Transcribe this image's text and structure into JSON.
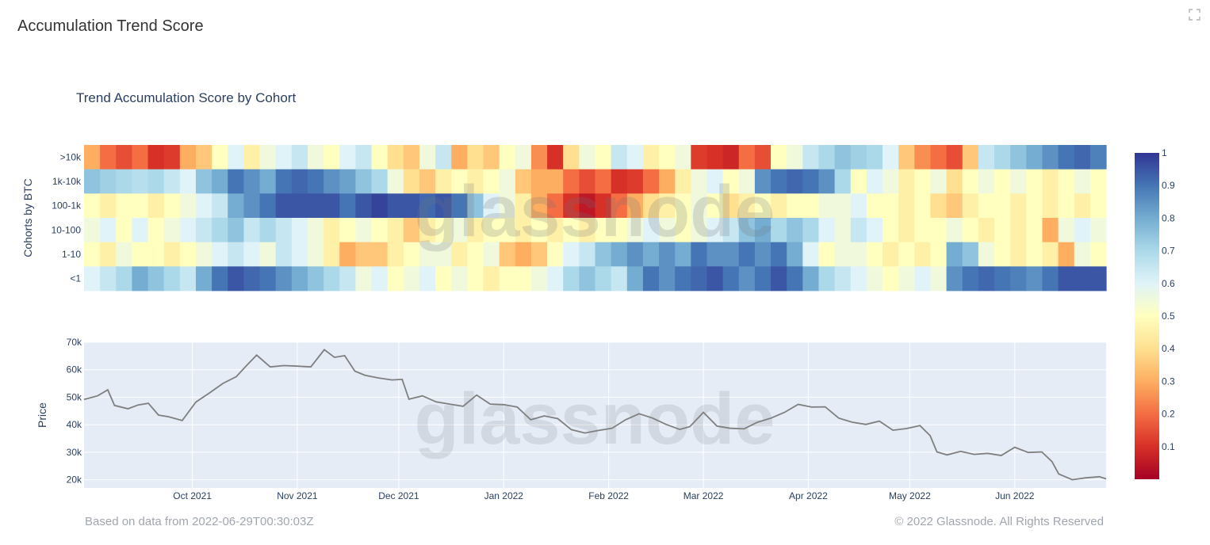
{
  "page": {
    "title": "Accumulation Trend Score"
  },
  "icons": {
    "expand": "expand-icon"
  },
  "footer": {
    "source_note": "Based on data from 2022-06-29T00:30:03Z",
    "copyright": "© 2022 Glassnode. All Rights Reserved"
  },
  "watermark": "glassnode",
  "colors": {
    "colorscale": [
      "#a50026",
      "#d73027",
      "#f46d43",
      "#fdae61",
      "#fee090",
      "#ffffbf",
      "#e0f3f8",
      "#abd9e9",
      "#74add1",
      "#4575b4",
      "#313695"
    ],
    "price_line": "#7f7f7f",
    "price_plot_bg": "#e5ecf6"
  },
  "chart_data": [
    {
      "type": "heatmap",
      "title": "Trend Accumulation Score by Cohort",
      "ylabel": "Cohorts by BTC",
      "rows": [
        ">10k",
        "1k-10k",
        "100-1k",
        "10-100",
        "1-10",
        "<1"
      ],
      "x_start": "2021-08-30",
      "x_end": "2022-06-28",
      "colorbar": {
        "range": [
          0,
          1
        ],
        "ticks": [
          0.1,
          0.2,
          0.3,
          0.4,
          0.5,
          0.6,
          0.7,
          0.8,
          0.9,
          1
        ]
      },
      "series": [
        {
          "name": ">10k",
          "values": [
            0.3,
            0.2,
            0.15,
            0.2,
            0.1,
            0.12,
            0.3,
            0.35,
            0.5,
            0.6,
            0.45,
            0.55,
            0.6,
            0.65,
            0.55,
            0.5,
            0.6,
            0.65,
            0.5,
            0.4,
            0.35,
            0.55,
            0.65,
            0.3,
            0.4,
            0.35,
            0.5,
            0.55,
            0.25,
            0.1,
            0.4,
            0.55,
            0.5,
            0.65,
            0.6,
            0.45,
            0.5,
            0.55,
            0.12,
            0.1,
            0.08,
            0.2,
            0.15,
            0.5,
            0.55,
            0.65,
            0.7,
            0.75,
            0.72,
            0.7,
            0.6,
            0.35,
            0.25,
            0.2,
            0.15,
            0.35,
            0.65,
            0.7,
            0.75,
            0.8,
            0.85,
            0.9,
            0.92,
            0.88
          ]
        },
        {
          "name": "1k-10k",
          "values": [
            0.75,
            0.72,
            0.7,
            0.68,
            0.7,
            0.65,
            0.6,
            0.75,
            0.8,
            0.9,
            0.85,
            0.8,
            0.9,
            0.92,
            0.9,
            0.85,
            0.82,
            0.75,
            0.7,
            0.55,
            0.4,
            0.35,
            0.45,
            0.5,
            0.45,
            0.5,
            0.55,
            0.35,
            0.3,
            0.3,
            0.2,
            0.15,
            0.2,
            0.1,
            0.12,
            0.2,
            0.3,
            0.45,
            0.55,
            0.6,
            0.5,
            0.55,
            0.85,
            0.9,
            0.92,
            0.9,
            0.85,
            0.7,
            0.5,
            0.6,
            0.55,
            0.45,
            0.5,
            0.55,
            0.4,
            0.5,
            0.55,
            0.5,
            0.55,
            0.5,
            0.45,
            0.5,
            0.55,
            0.5
          ]
        },
        {
          "name": "100-1k",
          "values": [
            0.5,
            0.45,
            0.5,
            0.5,
            0.45,
            0.5,
            0.55,
            0.6,
            0.65,
            0.8,
            0.85,
            0.9,
            0.95,
            0.95,
            0.95,
            0.95,
            0.9,
            0.95,
            0.98,
            0.95,
            0.95,
            0.92,
            0.95,
            0.9,
            0.75,
            0.6,
            0.55,
            0.45,
            0.3,
            0.2,
            0.1,
            0.05,
            0.1,
            0.2,
            0.3,
            0.4,
            0.45,
            0.5,
            0.55,
            0.5,
            0.4,
            0.45,
            0.5,
            0.45,
            0.5,
            0.5,
            0.55,
            0.55,
            0.6,
            0.5,
            0.5,
            0.45,
            0.5,
            0.4,
            0.35,
            0.45,
            0.5,
            0.5,
            0.45,
            0.5,
            0.45,
            0.5,
            0.45,
            0.5
          ]
        },
        {
          "name": "10-100",
          "values": [
            0.55,
            0.6,
            0.5,
            0.6,
            0.5,
            0.55,
            0.6,
            0.65,
            0.7,
            0.75,
            0.65,
            0.7,
            0.65,
            0.6,
            0.55,
            0.45,
            0.5,
            0.55,
            0.5,
            0.45,
            0.35,
            0.45,
            0.5,
            0.55,
            0.45,
            0.5,
            0.5,
            0.45,
            0.5,
            0.45,
            0.5,
            0.45,
            0.5,
            0.5,
            0.55,
            0.6,
            0.55,
            0.5,
            0.55,
            0.6,
            0.65,
            0.75,
            0.8,
            0.7,
            0.75,
            0.7,
            0.6,
            0.55,
            0.65,
            0.6,
            0.5,
            0.45,
            0.5,
            0.5,
            0.55,
            0.5,
            0.45,
            0.5,
            0.45,
            0.5,
            0.3,
            0.55,
            0.6,
            0.55
          ]
        },
        {
          "name": "1-10",
          "values": [
            0.5,
            0.45,
            0.55,
            0.5,
            0.5,
            0.45,
            0.5,
            0.55,
            0.6,
            0.65,
            0.6,
            0.55,
            0.65,
            0.6,
            0.55,
            0.45,
            0.3,
            0.35,
            0.35,
            0.45,
            0.5,
            0.55,
            0.55,
            0.45,
            0.5,
            0.55,
            0.35,
            0.3,
            0.35,
            0.5,
            0.6,
            0.65,
            0.75,
            0.8,
            0.85,
            0.8,
            0.85,
            0.8,
            0.9,
            0.85,
            0.85,
            0.9,
            0.85,
            0.9,
            0.8,
            0.6,
            0.5,
            0.55,
            0.55,
            0.5,
            0.45,
            0.5,
            0.45,
            0.5,
            0.8,
            0.75,
            0.55,
            0.5,
            0.45,
            0.5,
            0.45,
            0.3,
            0.55,
            0.5
          ]
        },
        {
          "name": "<1",
          "values": [
            0.6,
            0.65,
            0.7,
            0.8,
            0.75,
            0.7,
            0.65,
            0.8,
            0.9,
            0.95,
            0.92,
            0.9,
            0.85,
            0.8,
            0.75,
            0.7,
            0.65,
            0.55,
            0.6,
            0.5,
            0.55,
            0.6,
            0.5,
            0.55,
            0.5,
            0.45,
            0.5,
            0.5,
            0.55,
            0.6,
            0.7,
            0.75,
            0.7,
            0.65,
            0.8,
            0.9,
            0.85,
            0.9,
            0.92,
            0.95,
            0.9,
            0.85,
            0.9,
            0.95,
            0.9,
            0.8,
            0.7,
            0.65,
            0.6,
            0.55,
            0.5,
            0.55,
            0.6,
            0.55,
            0.85,
            0.9,
            0.92,
            0.9,
            0.88,
            0.85,
            0.9,
            0.95,
            0.95,
            0.95
          ]
        }
      ]
    },
    {
      "type": "line",
      "ylabel": "Price",
      "ylim": [
        17000,
        70000
      ],
      "yticks": [
        20000,
        30000,
        40000,
        50000,
        60000,
        70000
      ],
      "ytick_labels": [
        "20k",
        "30k",
        "40k",
        "50k",
        "60k",
        "70k"
      ],
      "x_range": [
        "2021-08-30",
        "2022-06-28"
      ],
      "xtick_labels": [
        "Oct 2021",
        "Nov 2021",
        "Dec 2021",
        "Jan 2022",
        "Feb 2022",
        "Mar 2022",
        "Apr 2022",
        "May 2022",
        "Jun 2022"
      ],
      "xtick_dates": [
        "2021-10-01",
        "2021-11-01",
        "2021-12-01",
        "2022-01-01",
        "2022-02-01",
        "2022-03-01",
        "2022-04-01",
        "2022-05-01",
        "2022-06-01"
      ],
      "grid": true,
      "series": [
        {
          "name": "Price",
          "x": [
            "2021-08-30",
            "2021-09-03",
            "2021-09-06",
            "2021-09-08",
            "2021-09-12",
            "2021-09-15",
            "2021-09-18",
            "2021-09-21",
            "2021-09-24",
            "2021-09-28",
            "2021-10-02",
            "2021-10-06",
            "2021-10-10",
            "2021-10-14",
            "2021-10-17",
            "2021-10-20",
            "2021-10-24",
            "2021-10-28",
            "2021-11-01",
            "2021-11-05",
            "2021-11-09",
            "2021-11-12",
            "2021-11-15",
            "2021-11-18",
            "2021-11-21",
            "2021-11-25",
            "2021-11-29",
            "2021-12-02",
            "2021-12-04",
            "2021-12-08",
            "2021-12-12",
            "2021-12-16",
            "2021-12-20",
            "2021-12-24",
            "2021-12-28",
            "2022-01-01",
            "2022-01-05",
            "2022-01-09",
            "2022-01-13",
            "2022-01-17",
            "2022-01-21",
            "2022-01-25",
            "2022-01-29",
            "2022-02-02",
            "2022-02-06",
            "2022-02-10",
            "2022-02-14",
            "2022-02-18",
            "2022-02-22",
            "2022-02-25",
            "2022-03-01",
            "2022-03-05",
            "2022-03-09",
            "2022-03-13",
            "2022-03-17",
            "2022-03-21",
            "2022-03-25",
            "2022-03-29",
            "2022-04-02",
            "2022-04-06",
            "2022-04-10",
            "2022-04-14",
            "2022-04-18",
            "2022-04-22",
            "2022-04-26",
            "2022-04-30",
            "2022-05-04",
            "2022-05-07",
            "2022-05-09",
            "2022-05-12",
            "2022-05-16",
            "2022-05-20",
            "2022-05-24",
            "2022-05-28",
            "2022-06-01",
            "2022-06-05",
            "2022-06-09",
            "2022-06-12",
            "2022-06-14",
            "2022-06-18",
            "2022-06-22",
            "2022-06-26",
            "2022-06-28"
          ],
          "values": [
            49200,
            50500,
            52700,
            47000,
            45800,
            47200,
            47800,
            43500,
            42900,
            41500,
            48200,
            51500,
            55000,
            57500,
            61500,
            65300,
            61000,
            61500,
            61300,
            61000,
            67300,
            64500,
            65100,
            59500,
            58000,
            57000,
            56300,
            56500,
            49300,
            50500,
            48300,
            47500,
            46700,
            50800,
            47500,
            47300,
            46400,
            41800,
            43200,
            42200,
            38200,
            37000,
            37900,
            38700,
            41800,
            44000,
            42400,
            40100,
            38300,
            39300,
            44500,
            39500,
            38700,
            38500,
            40900,
            42400,
            44500,
            47400,
            46400,
            46500,
            42400,
            40900,
            40100,
            41300,
            38000,
            38600,
            39700,
            36000,
            30100,
            29000,
            30300,
            29200,
            29600,
            28800,
            31800,
            29900,
            30100,
            26600,
            22100,
            20000,
            20700,
            21100,
            20300
          ]
        }
      ]
    }
  ]
}
